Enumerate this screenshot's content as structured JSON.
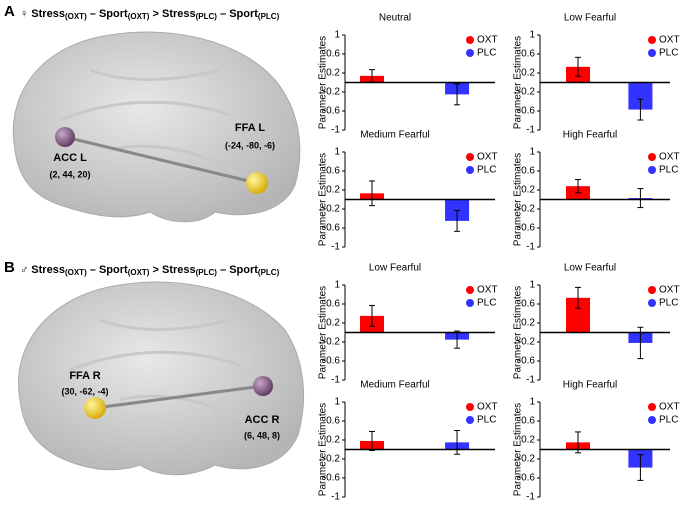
{
  "panels": [
    {
      "label": "A",
      "heading": [
        "♀ Stress",
        "(OXT)",
        " – Sport",
        "(OXT)",
        " > Stress",
        "(PLC)",
        " – Sport",
        "(PLC)"
      ],
      "regions": [
        {
          "name": "ACC L",
          "coords": "(2, 44, 20)"
        },
        {
          "name": "FFA L",
          "coords": "(-24, -80, -6)"
        }
      ]
    },
    {
      "label": "B",
      "heading": [
        "♂ Stress",
        "(OXT)",
        " – Sport",
        "(OXT)",
        " > Stress",
        "(PLC)",
        " – Sport",
        "(PLC)"
      ],
      "regions": [
        {
          "name": "FFA R",
          "coords": "(30, -62, -4)"
        },
        {
          "name": "ACC R",
          "coords": "(6, 48, 8)"
        }
      ]
    }
  ],
  "chart_data": [
    {
      "type": "bar",
      "title": "Neutral",
      "ylabel": "Parameter Estimates",
      "categories": [
        null
      ],
      "ylim": [
        -1,
        1
      ],
      "yticks": [
        1,
        0.6,
        0.2,
        -0.2,
        -0.6,
        -1
      ],
      "series": [
        {
          "name": "OXT",
          "color": "#ff0000",
          "values": [
            0.14
          ],
          "errors": [
            0.13
          ]
        },
        {
          "name": "PLC",
          "color": "#3333ff",
          "values": [
            -0.25
          ],
          "errors": [
            0.22
          ]
        }
      ]
    },
    {
      "type": "bar",
      "title": "Low Fearful",
      "ylabel": "Parameter Estimates",
      "categories": [
        null
      ],
      "ylim": [
        -1,
        1
      ],
      "yticks": [
        1,
        0.6,
        0.2,
        -0.2,
        -0.6,
        -1
      ],
      "series": [
        {
          "name": "OXT",
          "color": "#ff0000",
          "values": [
            0.33
          ],
          "errors": [
            0.2
          ]
        },
        {
          "name": "PLC",
          "color": "#3333ff",
          "values": [
            -0.57
          ],
          "errors": [
            0.22
          ]
        }
      ]
    },
    {
      "type": "bar",
      "title": "Medium Fearful",
      "ylabel": "Parameter Estimates",
      "categories": [
        null
      ],
      "ylim": [
        -1,
        1
      ],
      "yticks": [
        1,
        0.6,
        0.2,
        -0.2,
        -0.6,
        -1
      ],
      "series": [
        {
          "name": "OXT",
          "color": "#ff0000",
          "values": [
            0.13
          ],
          "errors": [
            0.26
          ]
        },
        {
          "name": "PLC",
          "color": "#3333ff",
          "values": [
            -0.45
          ],
          "errors": [
            0.22
          ]
        }
      ]
    },
    {
      "type": "bar",
      "title": "High Fearful",
      "ylabel": "Parameter Estimates",
      "categories": [
        null
      ],
      "ylim": [
        -1,
        1
      ],
      "yticks": [
        1,
        0.6,
        0.2,
        -0.2,
        -0.6,
        -1
      ],
      "series": [
        {
          "name": "OXT",
          "color": "#ff0000",
          "values": [
            0.28
          ],
          "errors": [
            0.14
          ]
        },
        {
          "name": "PLC",
          "color": "#3333ff",
          "values": [
            0.03
          ],
          "errors": [
            0.2
          ]
        }
      ]
    },
    {
      "type": "bar",
      "title": "Low Fearful",
      "ylabel": "Parameter Estimates",
      "categories": [
        null
      ],
      "ylim": [
        -1,
        1
      ],
      "yticks": [
        1,
        0.6,
        0.2,
        -0.2,
        -0.6,
        -1
      ],
      "series": [
        {
          "name": "OXT",
          "color": "#ff0000",
          "values": [
            0.35
          ],
          "errors": [
            0.22
          ]
        },
        {
          "name": "PLC",
          "color": "#3333ff",
          "values": [
            -0.15
          ],
          "errors": [
            0.18
          ]
        }
      ]
    },
    {
      "type": "bar",
      "title": "Low Fearful",
      "ylabel": "Parameter Estimates",
      "categories": [
        null
      ],
      "ylim": [
        -1,
        1
      ],
      "yticks": [
        1,
        0.6,
        0.2,
        -0.2,
        -0.6,
        -1
      ],
      "series": [
        {
          "name": "OXT",
          "color": "#ff0000",
          "values": [
            0.73
          ],
          "errors": [
            0.22
          ]
        },
        {
          "name": "PLC",
          "color": "#3333ff",
          "values": [
            -0.22
          ],
          "errors": [
            0.33
          ]
        }
      ]
    },
    {
      "type": "bar",
      "title": "Medium Fearful",
      "ylabel": "Parameter Estimates",
      "categories": [
        null
      ],
      "ylim": [
        -1,
        1
      ],
      "yticks": [
        1,
        0.6,
        0.2,
        -0.2,
        -0.6,
        -1
      ],
      "series": [
        {
          "name": "OXT",
          "color": "#ff0000",
          "values": [
            0.18
          ],
          "errors": [
            0.2
          ]
        },
        {
          "name": "PLC",
          "color": "#3333ff",
          "values": [
            0.15
          ],
          "errors": [
            0.25
          ]
        }
      ]
    },
    {
      "type": "bar",
      "title": "High Fearful",
      "ylabel": "Parameter Estimates",
      "categories": [
        null
      ],
      "ylim": [
        -1,
        1
      ],
      "yticks": [
        1,
        0.6,
        0.2,
        -0.2,
        -0.6,
        -1
      ],
      "series": [
        {
          "name": "OXT",
          "color": "#ff0000",
          "values": [
            0.15
          ],
          "errors": [
            0.22
          ]
        },
        {
          "name": "PLC",
          "color": "#3333ff",
          "values": [
            -0.38
          ],
          "errors": [
            0.27
          ]
        }
      ]
    }
  ]
}
